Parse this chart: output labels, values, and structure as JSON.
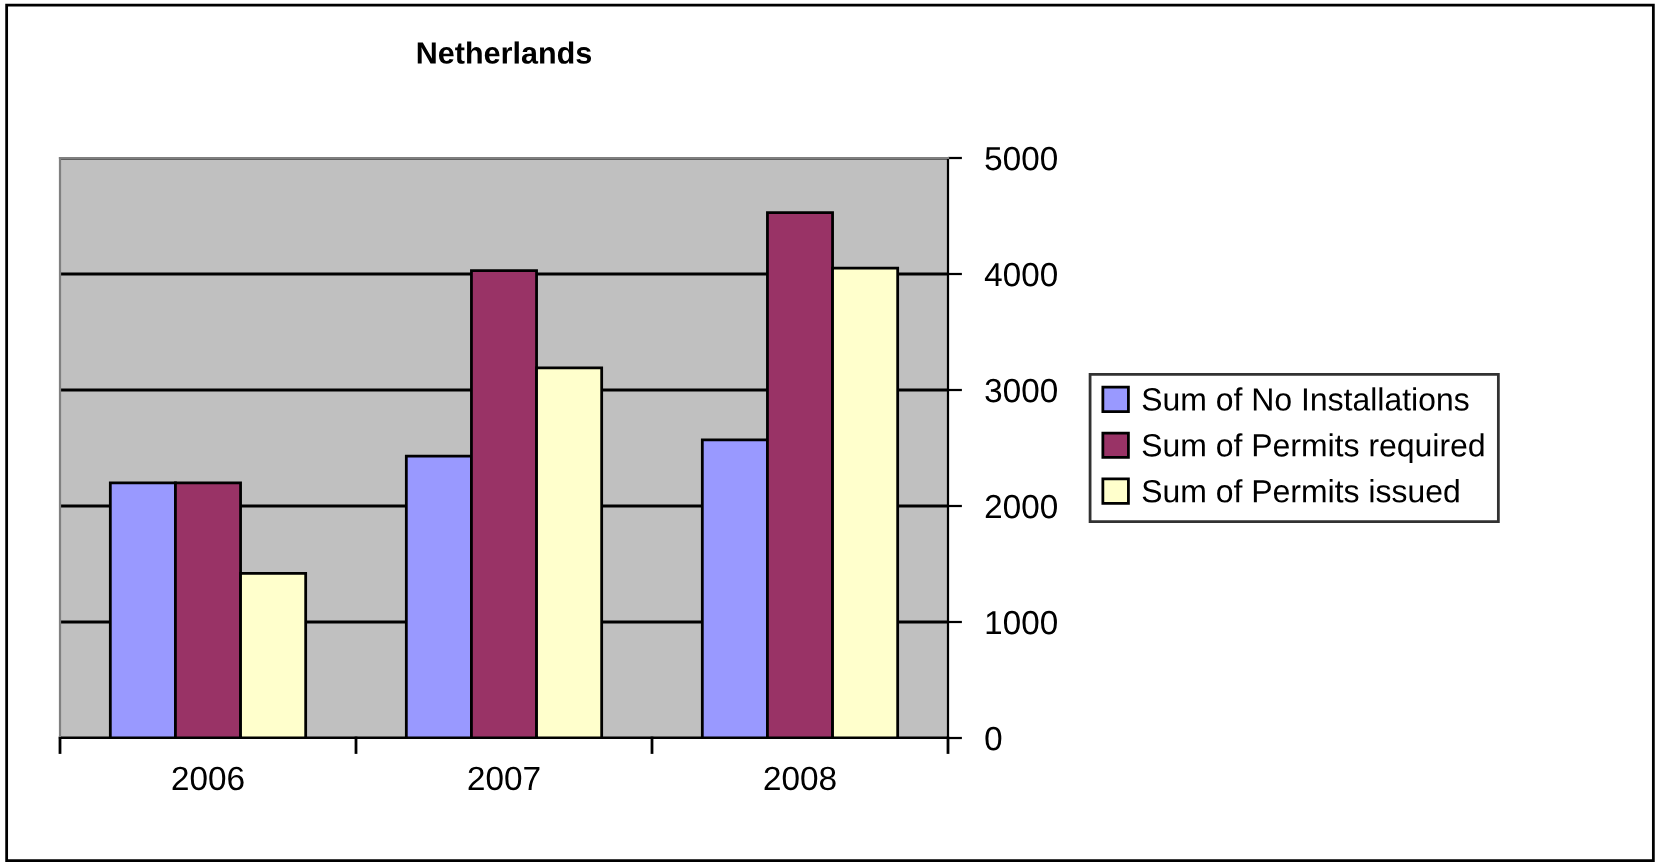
{
  "chart_data": {
    "type": "bar",
    "title": "Netherlands",
    "categories": [
      "2006",
      "2007",
      "2008"
    ],
    "series": [
      {
        "name": "Sum of No Installations",
        "color": "#9999ff",
        "values": [
          2200,
          2430,
          2570
        ]
      },
      {
        "name": "Sum of Permits required",
        "color": "#993366",
        "values": [
          2200,
          4030,
          4530
        ]
      },
      {
        "name": "Sum of Permits issued",
        "color": "#ffffcc",
        "values": [
          1420,
          3190,
          4050
        ]
      }
    ],
    "ylim": [
      0,
      5000
    ],
    "yticks": [
      0,
      1000,
      2000,
      3000,
      4000,
      5000
    ],
    "grid": "y",
    "legend": "right"
  }
}
